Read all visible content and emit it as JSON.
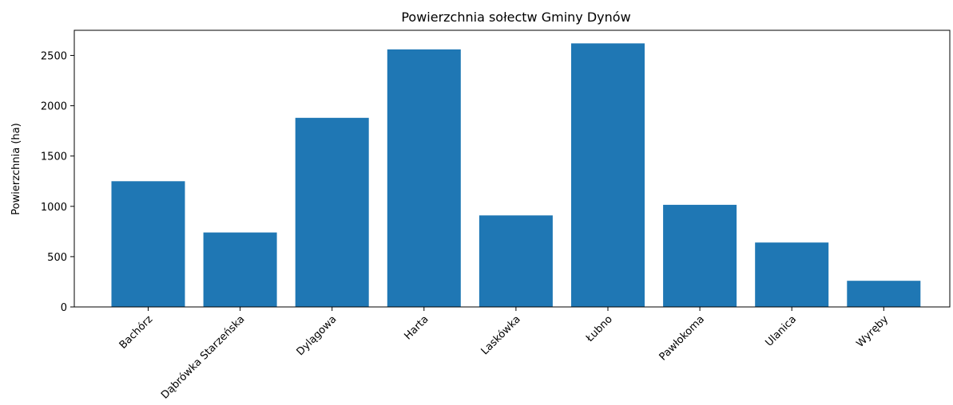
{
  "chart_data": {
    "type": "bar",
    "title": "Powierzchnia sołectw Gminy Dynów",
    "xlabel": "",
    "ylabel": "Powierzchnia (ha)",
    "categories": [
      "Bachórz",
      "Dąbrówka Starzeńska",
      "Dylągowa",
      "Harta",
      "Laskówka",
      "Łubno",
      "Pawłokoma",
      "Ulanica",
      "Wyręby"
    ],
    "values": [
      1250,
      740,
      1880,
      2560,
      910,
      2620,
      1015,
      640,
      260
    ],
    "ylim": [
      0,
      2750
    ],
    "yticks": [
      0,
      500,
      1000,
      1500,
      2000,
      2500
    ],
    "bar_color": "#1f77b4",
    "grid": false,
    "legend": false
  }
}
